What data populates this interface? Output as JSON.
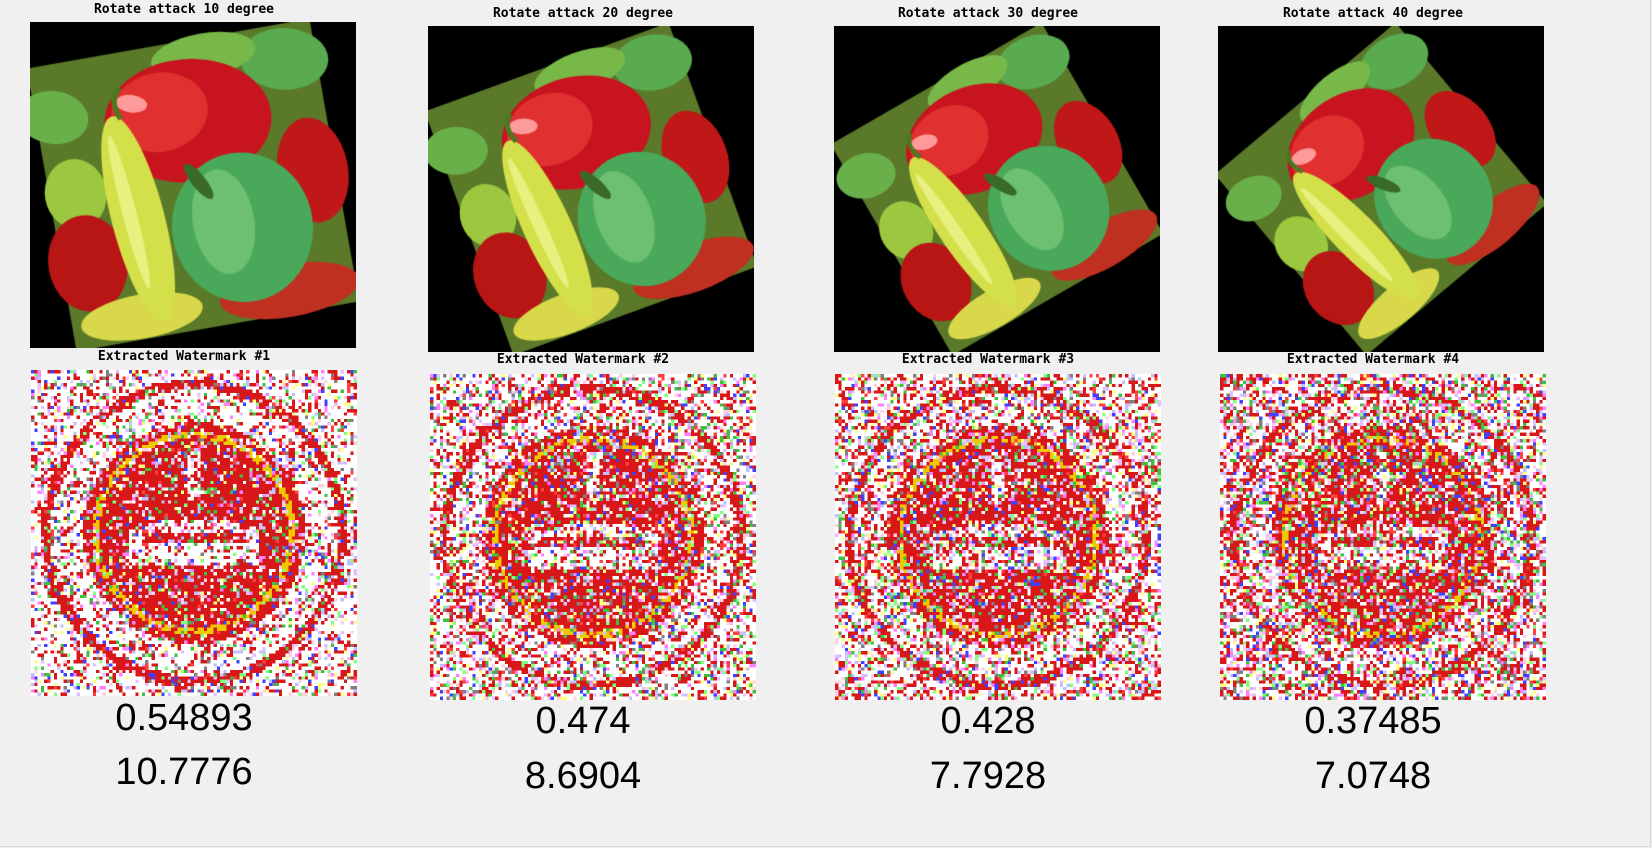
{
  "panels": [
    {
      "attack_title": "Rotate attack 10 degree",
      "watermark_title": "Extracted Watermark #1",
      "value_1": "0.54893",
      "value_2": "10.7776"
    },
    {
      "attack_title": "Rotate attack 20 degree",
      "watermark_title": "Extracted Watermark #2",
      "value_1": "0.474",
      "value_2": "8.6904"
    },
    {
      "attack_title": "Rotate attack 30 degree",
      "watermark_title": "Extracted Watermark #3",
      "value_1": "0.428",
      "value_2": "7.7928"
    },
    {
      "attack_title": "Rotate attack 40 degree",
      "watermark_title": "Extracted Watermark #4",
      "value_1": "0.37485",
      "value_2": "7.0748"
    }
  ],
  "rotation_degrees": [
    10,
    20,
    30,
    40
  ],
  "colors": {
    "background": "#f0f0f0",
    "pepper_red": "#c8141e",
    "pepper_green": "#4aa85a",
    "pepper_yellow": "#d4e04a",
    "watermark_red": "#d81818",
    "watermark_yellow": "#f0c800"
  }
}
